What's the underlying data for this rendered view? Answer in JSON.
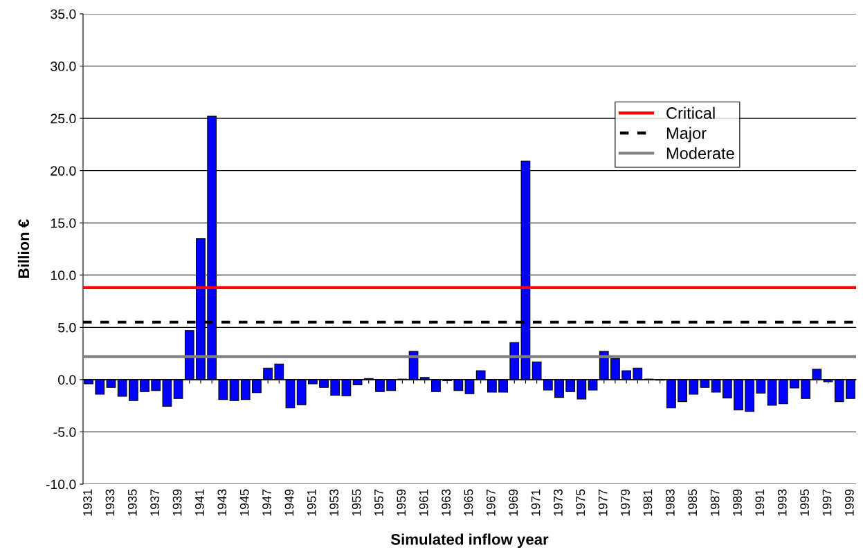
{
  "chart_data": {
    "type": "bar",
    "xlabel": "Simulated inflow year",
    "ylabel": "Billion €",
    "categories": [
      "1931",
      null,
      "1933",
      null,
      "1935",
      null,
      "1937",
      null,
      "1939",
      null,
      "1941",
      null,
      "1943",
      null,
      "1945",
      null,
      "1947",
      null,
      "1949",
      null,
      "1951",
      null,
      "1953",
      null,
      "1955",
      null,
      "1957",
      null,
      "1959",
      null,
      "1961",
      null,
      "1963",
      null,
      "1965",
      null,
      "1967",
      null,
      "1969",
      null,
      "1971",
      null,
      "1973",
      null,
      "1975",
      null,
      "1977",
      null,
      "1979",
      null,
      "1981",
      null,
      "1983",
      null,
      "1985",
      null,
      "1987",
      null,
      "1989",
      null,
      "1991",
      null,
      "1993",
      null,
      "1995",
      null,
      "1997",
      null,
      "1999"
    ],
    "values": [
      -0.4,
      -1.4,
      -0.75,
      -1.6,
      -2.0,
      -1.15,
      -1.05,
      -2.55,
      -1.8,
      4.7,
      13.5,
      25.2,
      -1.9,
      -2.0,
      -1.9,
      -1.25,
      1.1,
      1.5,
      -2.7,
      -2.4,
      -0.4,
      -0.75,
      -1.5,
      -1.55,
      -0.5,
      0.1,
      -1.15,
      -1.05,
      0.05,
      2.7,
      0.2,
      -1.15,
      -0.1,
      -1.05,
      -1.35,
      0.85,
      -1.2,
      -1.2,
      3.55,
      20.9,
      1.7,
      -1.0,
      -1.7,
      -1.15,
      -1.85,
      -1.0,
      2.7,
      2.0,
      0.85,
      1.1,
      0.05,
      -0.05,
      -2.7,
      -2.1,
      -1.4,
      -0.75,
      -1.2,
      -1.75,
      -2.9,
      -3.05,
      -1.3,
      -2.45,
      -2.3,
      -0.8,
      -1.8,
      1.0,
      -0.2,
      -2.1,
      -1.8
    ],
    "color": "#0000ff",
    "ylim": [
      -10,
      35
    ],
    "yticks": [
      {
        "value": -10,
        "label": "-10.0"
      },
      {
        "value": -5,
        "label": "-5.0"
      },
      {
        "value": 0,
        "label": "0.0"
      },
      {
        "value": 5,
        "label": "5.0"
      },
      {
        "value": 10,
        "label": "10.0"
      },
      {
        "value": 15,
        "label": "15.0"
      },
      {
        "value": 20,
        "label": "20.0"
      },
      {
        "value": 25,
        "label": "25.0"
      },
      {
        "value": 30,
        "label": "30.0"
      },
      {
        "value": 35,
        "label": "35.0"
      }
    ],
    "ref_lines": [
      {
        "axis": "y",
        "value": 8.8,
        "label": "Critical",
        "color": "#ff0000",
        "line_style": "solid"
      },
      {
        "axis": "y",
        "value": 5.5,
        "label": "Major",
        "color": "#000000",
        "line_style": "dashed"
      },
      {
        "axis": "y",
        "value": 2.2,
        "label": "Moderate",
        "color": "#808080",
        "line_style": "solid"
      }
    ],
    "grid": "y",
    "legend": "top right"
  }
}
